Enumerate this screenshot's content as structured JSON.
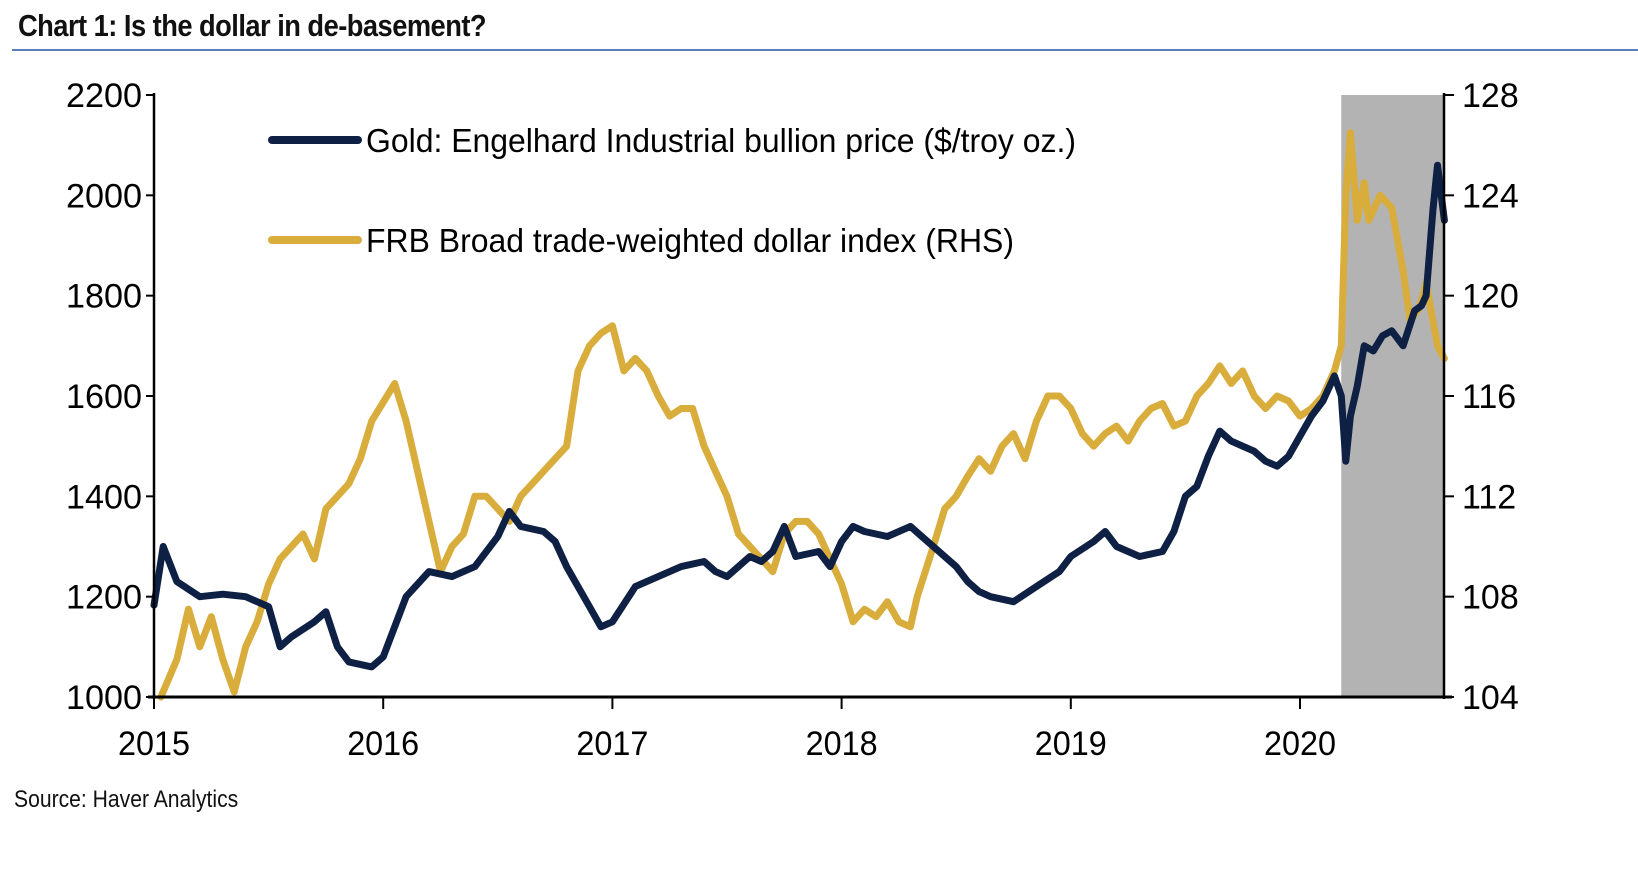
{
  "header": {
    "title": "Chart 1: Is the dollar in de-basement?"
  },
  "footer": {
    "source": "Source: Haver Analytics"
  },
  "colors": {
    "gold_series": "#0e2044",
    "dollar_series": "#d9ad3c",
    "shading": "#b3b3b3",
    "title_rule": "#5b7db8"
  },
  "chart_data": {
    "type": "line",
    "title": "Chart 1: Is the dollar in de-basement?",
    "xlabel": "",
    "ylabel": "",
    "ylabel_right": "",
    "x_range": [
      2015.0,
      2020.63
    ],
    "ylim": [
      1000,
      2200
    ],
    "ylim_right": [
      104,
      128
    ],
    "x_ticks": [
      2015,
      2016,
      2017,
      2018,
      2019,
      2020
    ],
    "x_tick_labels": [
      "2015",
      "2016",
      "2017",
      "2018",
      "2019",
      "2020"
    ],
    "y_ticks_left": [
      1000,
      1200,
      1400,
      1600,
      1800,
      2000,
      2200
    ],
    "y_tick_labels_left": [
      "1000",
      "1200",
      "1400",
      "1600",
      "1800",
      "2000",
      "2200"
    ],
    "y_ticks_right": [
      104,
      108,
      112,
      116,
      120,
      124,
      128
    ],
    "y_tick_labels_right": [
      "104",
      "108",
      "112",
      "116",
      "120",
      "124",
      "128"
    ],
    "grid": false,
    "legend_position": "top-left (inside plot)",
    "shaded_region": {
      "x_start": 2020.18,
      "x_end": 2020.63,
      "label": ""
    },
    "series": [
      {
        "name": "Gold: Engelhard Industrial bullion price ($/troy oz.)",
        "axis": "left",
        "x": [
          2015.0,
          2015.04,
          2015.1,
          2015.2,
          2015.3,
          2015.4,
          2015.5,
          2015.55,
          2015.6,
          2015.7,
          2015.75,
          2015.8,
          2015.85,
          2015.95,
          2016.0,
          2016.1,
          2016.2,
          2016.3,
          2016.4,
          2016.5,
          2016.55,
          2016.6,
          2016.7,
          2016.75,
          2016.8,
          2016.9,
          2016.95,
          2017.0,
          2017.1,
          2017.2,
          2017.3,
          2017.4,
          2017.45,
          2017.5,
          2017.6,
          2017.65,
          2017.7,
          2017.75,
          2017.8,
          2017.9,
          2017.95,
          2018.0,
          2018.05,
          2018.1,
          2018.2,
          2018.3,
          2018.35,
          2018.4,
          2018.5,
          2018.55,
          2018.6,
          2018.65,
          2018.75,
          2018.85,
          2018.95,
          2019.0,
          2019.1,
          2019.15,
          2019.2,
          2019.3,
          2019.4,
          2019.45,
          2019.5,
          2019.55,
          2019.6,
          2019.65,
          2019.7,
          2019.75,
          2019.8,
          2019.85,
          2019.9,
          2019.95,
          2020.0,
          2020.05,
          2020.1,
          2020.15,
          2020.18,
          2020.2,
          2020.22,
          2020.25,
          2020.28,
          2020.32,
          2020.36,
          2020.4,
          2020.45,
          2020.5,
          2020.53,
          2020.55,
          2020.58,
          2020.6,
          2020.63
        ],
        "values": [
          1183,
          1300,
          1230,
          1200,
          1205,
          1200,
          1180,
          1100,
          1120,
          1150,
          1170,
          1100,
          1070,
          1060,
          1080,
          1200,
          1250,
          1240,
          1260,
          1320,
          1370,
          1340,
          1330,
          1310,
          1260,
          1180,
          1140,
          1150,
          1220,
          1240,
          1260,
          1270,
          1250,
          1240,
          1280,
          1270,
          1290,
          1340,
          1280,
          1290,
          1260,
          1310,
          1340,
          1330,
          1320,
          1340,
          1320,
          1300,
          1260,
          1230,
          1210,
          1200,
          1190,
          1220,
          1250,
          1280,
          1310,
          1330,
          1300,
          1280,
          1290,
          1330,
          1400,
          1420,
          1480,
          1530,
          1510,
          1500,
          1490,
          1470,
          1460,
          1480,
          1520,
          1560,
          1590,
          1640,
          1600,
          1470,
          1560,
          1620,
          1700,
          1690,
          1720,
          1730,
          1700,
          1770,
          1780,
          1800,
          1970,
          2060,
          1950
        ]
      },
      {
        "name": "FRB Broad trade-weighted dollar index (RHS)",
        "axis": "right",
        "x": [
          2015.03,
          2015.1,
          2015.15,
          2015.2,
          2015.25,
          2015.3,
          2015.35,
          2015.4,
          2015.45,
          2015.5,
          2015.55,
          2015.6,
          2015.65,
          2015.7,
          2015.75,
          2015.8,
          2015.85,
          2015.9,
          2015.95,
          2016.05,
          2016.1,
          2016.15,
          2016.2,
          2016.25,
          2016.3,
          2016.35,
          2016.4,
          2016.45,
          2016.5,
          2016.55,
          2016.6,
          2016.65,
          2016.7,
          2016.75,
          2016.8,
          2016.85,
          2016.9,
          2016.95,
          2017.0,
          2017.05,
          2017.1,
          2017.15,
          2017.2,
          2017.25,
          2017.3,
          2017.35,
          2017.4,
          2017.45,
          2017.5,
          2017.55,
          2017.6,
          2017.65,
          2017.7,
          2017.75,
          2017.8,
          2017.85,
          2017.9,
          2017.95,
          2018.0,
          2018.05,
          2018.1,
          2018.15,
          2018.2,
          2018.25,
          2018.3,
          2018.33,
          2018.4,
          2018.45,
          2018.5,
          2018.55,
          2018.6,
          2018.65,
          2018.7,
          2018.75,
          2018.8,
          2018.85,
          2018.9,
          2018.95,
          2019.0,
          2019.05,
          2019.1,
          2019.15,
          2019.2,
          2019.25,
          2019.3,
          2019.35,
          2019.4,
          2019.45,
          2019.5,
          2019.55,
          2019.6,
          2019.65,
          2019.7,
          2019.75,
          2019.8,
          2019.85,
          2019.9,
          2019.95,
          2020.0,
          2020.05,
          2020.1,
          2020.15,
          2020.18,
          2020.2,
          2020.22,
          2020.25,
          2020.28,
          2020.3,
          2020.35,
          2020.4,
          2020.45,
          2020.48,
          2020.52,
          2020.55,
          2020.58,
          2020.6,
          2020.63
        ],
        "values": [
          104,
          105.5,
          107.5,
          106,
          107.2,
          105.5,
          104.2,
          106,
          107,
          108.5,
          109.5,
          110,
          110.5,
          109.5,
          111.5,
          112,
          112.5,
          113.5,
          115,
          116.5,
          115,
          113,
          111,
          109,
          110,
          110.5,
          112,
          112,
          111.5,
          111,
          112,
          112.5,
          113,
          113.5,
          114,
          117,
          118,
          118.5,
          118.8,
          117,
          117.5,
          117,
          116,
          115.2,
          115.5,
          115.5,
          114,
          113,
          112,
          110.5,
          110,
          109.5,
          109,
          110.5,
          111,
          111,
          110.5,
          109.5,
          108.5,
          107,
          107.5,
          107.2,
          107.8,
          107,
          106.8,
          108,
          110,
          111.5,
          112,
          112.8,
          113.5,
          113,
          114,
          114.5,
          113.5,
          115,
          116,
          116,
          115.5,
          114.5,
          114,
          114.5,
          114.8,
          114.2,
          115,
          115.5,
          115.7,
          114.8,
          115,
          116,
          116.5,
          117.2,
          116.5,
          117,
          116,
          115.5,
          116,
          115.8,
          115.2,
          115.5,
          116,
          117,
          118,
          124,
          126.5,
          123,
          124.5,
          123,
          124,
          123.5,
          121,
          119,
          119.5,
          120.5,
          119,
          118,
          117.5
        ]
      }
    ]
  }
}
